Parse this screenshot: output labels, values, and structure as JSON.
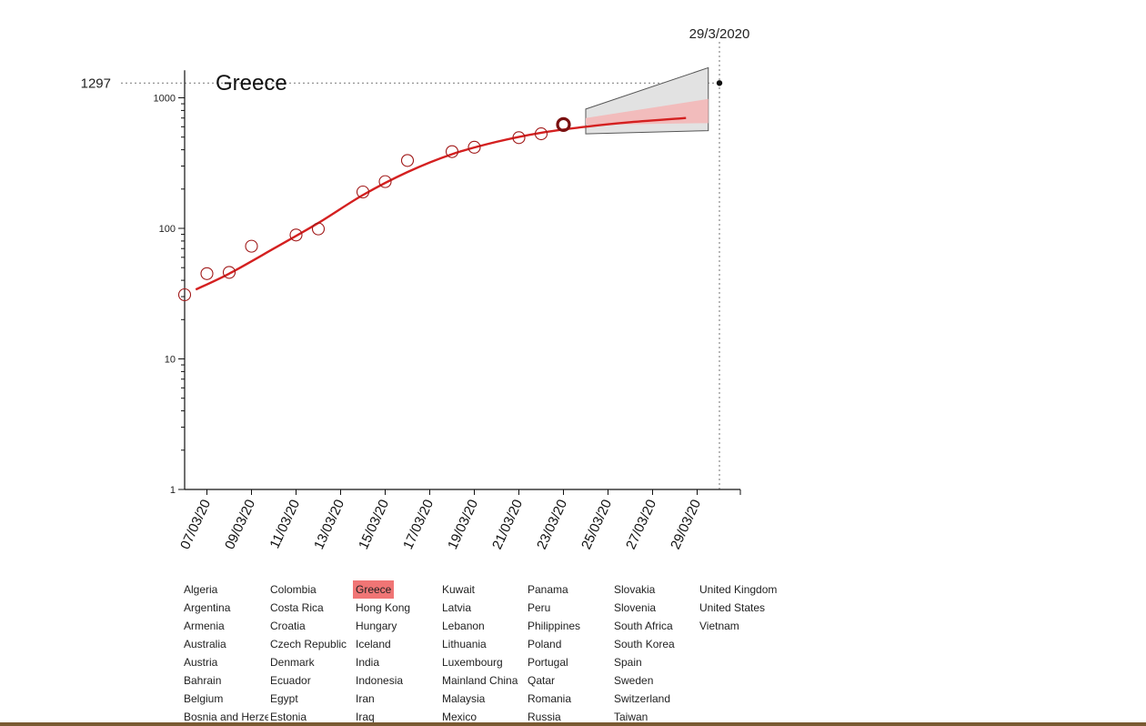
{
  "chart_data": {
    "type": "scatter",
    "title": "Greece",
    "y_scale": "log",
    "ylim": [
      1,
      1297
    ],
    "y_ticks": [
      1,
      10,
      100,
      1000
    ],
    "y_tick_labels": [
      "1",
      "10",
      "100",
      "1000"
    ],
    "x_tick_labels": [
      "07/03/20",
      "09/03/20",
      "11/03/20",
      "13/03/20",
      "15/03/20",
      "17/03/20",
      "19/03/20",
      "21/03/20",
      "23/03/20",
      "25/03/20",
      "27/03/20",
      "29/03/20"
    ],
    "x_ticks": [
      "2020-03-07",
      "2020-03-09",
      "2020-03-11",
      "2020-03-13",
      "2020-03-15",
      "2020-03-17",
      "2020-03-19",
      "2020-03-21",
      "2020-03-23",
      "2020-03-25",
      "2020-03-27",
      "2020-03-29"
    ],
    "xlim": [
      "2020-03-06",
      "2020-03-30"
    ],
    "observed": [
      {
        "x": "2020-03-06",
        "y": 31
      },
      {
        "x": "2020-03-07",
        "y": 45
      },
      {
        "x": "2020-03-08",
        "y": 46
      },
      {
        "x": "2020-03-09",
        "y": 73
      },
      {
        "x": "2020-03-11",
        "y": 89
      },
      {
        "x": "2020-03-12",
        "y": 99
      },
      {
        "x": "2020-03-14",
        "y": 190
      },
      {
        "x": "2020-03-15",
        "y": 228
      },
      {
        "x": "2020-03-16",
        "y": 331
      },
      {
        "x": "2020-03-18",
        "y": 387
      },
      {
        "x": "2020-03-19",
        "y": 418
      },
      {
        "x": "2020-03-21",
        "y": 495
      },
      {
        "x": "2020-03-22",
        "y": 530
      },
      {
        "x": "2020-03-23",
        "y": 624
      }
    ],
    "fit_curve": [
      {
        "x": "2020-03-06.5",
        "y": 34
      },
      {
        "x": "2020-03-08",
        "y": 45
      },
      {
        "x": "2020-03-10",
        "y": 70
      },
      {
        "x": "2020-03-12",
        "y": 110
      },
      {
        "x": "2020-03-14",
        "y": 180
      },
      {
        "x": "2020-03-16",
        "y": 270
      },
      {
        "x": "2020-03-18",
        "y": 370
      },
      {
        "x": "2020-03-20",
        "y": 460
      },
      {
        "x": "2020-03-22",
        "y": 540
      },
      {
        "x": "2020-03-24",
        "y": 600
      },
      {
        "x": "2020-03-26",
        "y": 650
      },
      {
        "x": "2020-03-28.5",
        "y": 700
      }
    ],
    "forecast_outer_band": {
      "start": "2020-03-24",
      "end": "2020-03-29.5",
      "upper_start": 820,
      "upper_end": 1700,
      "lower_start": 530,
      "lower_end": 560
    },
    "forecast_inner_band": {
      "start": "2020-03-24",
      "end": "2020-03-29.5",
      "upper_start": 700,
      "upper_end": 980,
      "lower_start": 620,
      "lower_end": 640
    },
    "highlight_point": {
      "x": "2020-03-23",
      "y": 624
    },
    "reference_line": {
      "date_label": "29/3/2020",
      "value_label": "1297",
      "date": "2020-03-30",
      "value": 1297
    },
    "grid": false,
    "colors": {
      "curve": "#d42020",
      "marker": "#a01818",
      "band_outer": "#e2e2e2",
      "band_inner": "#f2bcbc",
      "band_outline": "#555555",
      "axis": "#111111",
      "reference": "#888888"
    }
  },
  "countries": {
    "selected": "Greece",
    "columns": [
      [
        "Algeria",
        "Argentina",
        "Armenia",
        "Australia",
        "Austria",
        "Bahrain",
        "Belgium",
        "Bosnia and Herzegovina"
      ],
      [
        "Colombia",
        "Costa Rica",
        "Croatia",
        "Czech Republic",
        "Denmark",
        "Ecuador",
        "Egypt",
        "Estonia"
      ],
      [
        "Greece",
        "Hong Kong",
        "Hungary",
        "Iceland",
        "India",
        "Indonesia",
        "Iran",
        "Iraq"
      ],
      [
        "Kuwait",
        "Latvia",
        "Lebanon",
        "Lithuania",
        "Luxembourg",
        "Mainland China",
        "Malaysia",
        "Mexico"
      ],
      [
        "Panama",
        "Peru",
        "Philippines",
        "Poland",
        "Portugal",
        "Qatar",
        "Romania",
        "Russia"
      ],
      [
        "Slovakia",
        "Slovenia",
        "South Africa",
        "South Korea",
        "Spain",
        "Sweden",
        "Switzerland",
        "Taiwan"
      ],
      [
        "United Kingdom",
        "United States",
        "Vietnam"
      ]
    ]
  }
}
